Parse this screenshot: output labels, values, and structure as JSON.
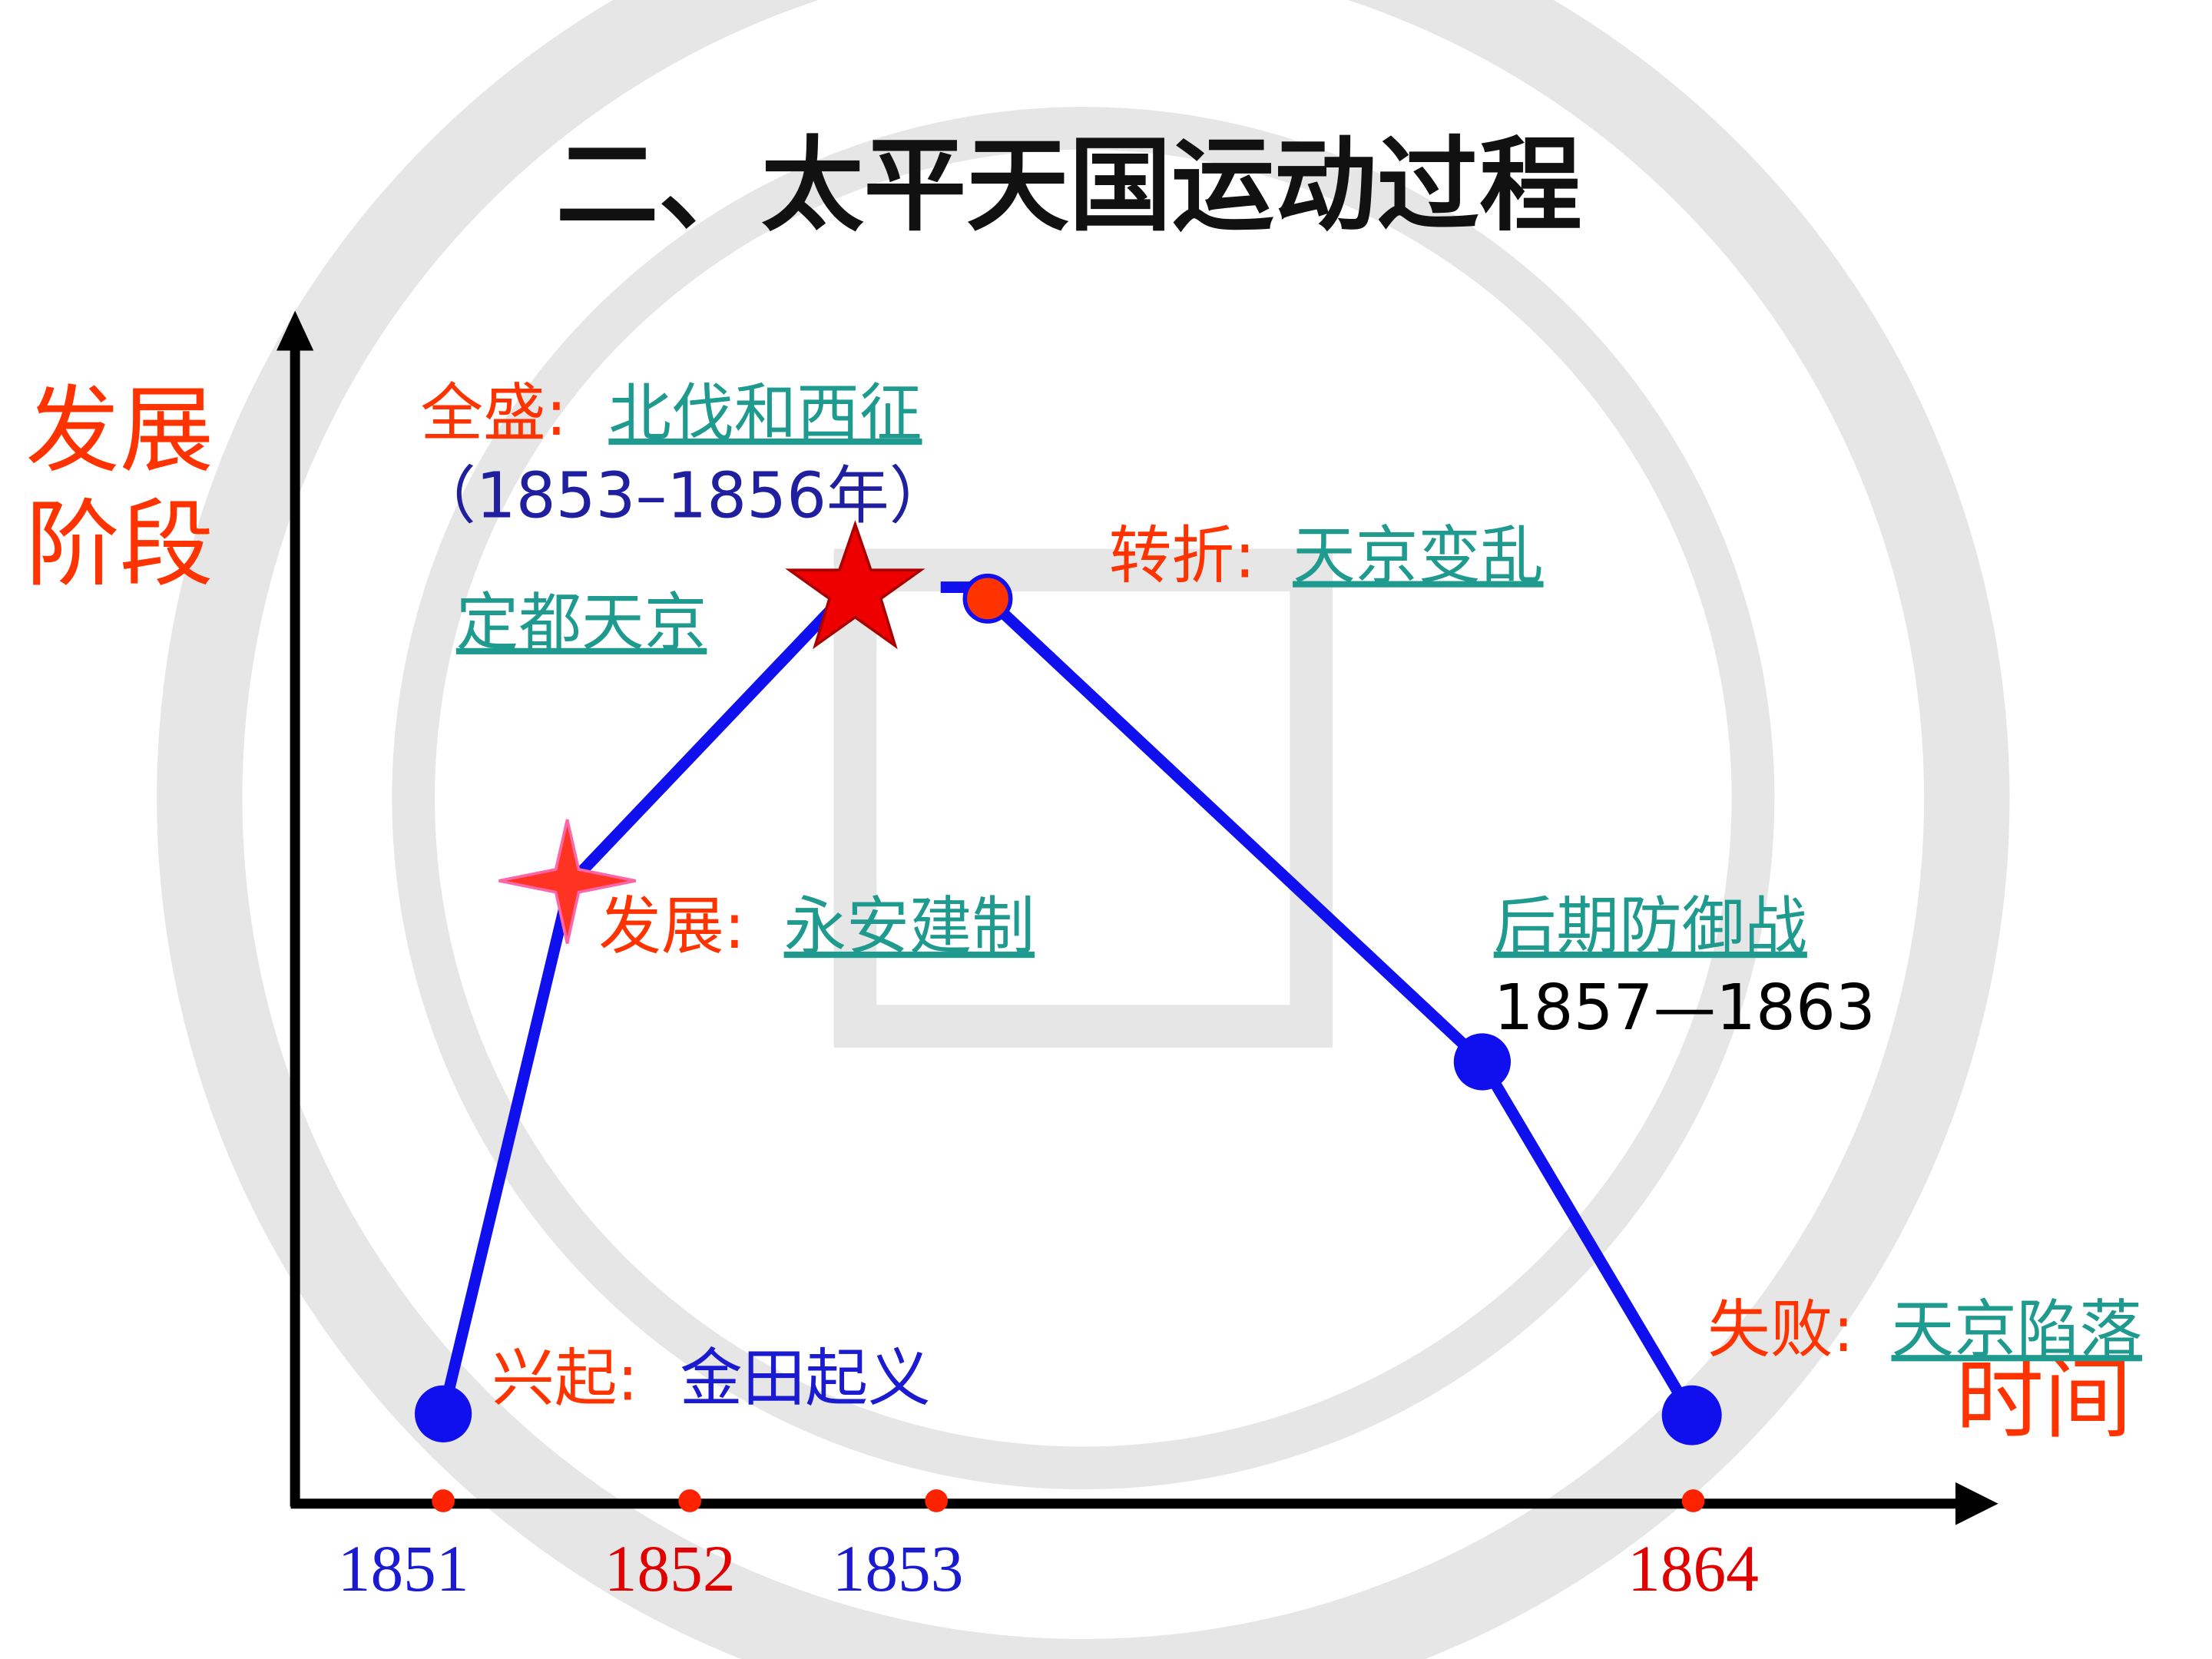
{
  "header": {
    "title": "二、太平天国运动过程"
  },
  "axes": {
    "y_label": [
      "发展",
      "阶段"
    ],
    "x_label": "时间"
  },
  "years": [
    "1851",
    "1852",
    "1853",
    "1864"
  ],
  "stages": [
    {
      "label": "兴起:",
      "event": "金田起义"
    },
    {
      "label": "发展:",
      "event": "永安建制"
    },
    {
      "event": "定都天京"
    },
    {
      "label": "全盛:",
      "event": "北伐和西征",
      "period": "（1853–1856年）"
    },
    {
      "label": "转折:",
      "event": "天京变乱"
    },
    {
      "event": "后期防御战",
      "period": "1857—1863"
    },
    {
      "label": "失败:",
      "event": "天京陷落"
    }
  ]
}
